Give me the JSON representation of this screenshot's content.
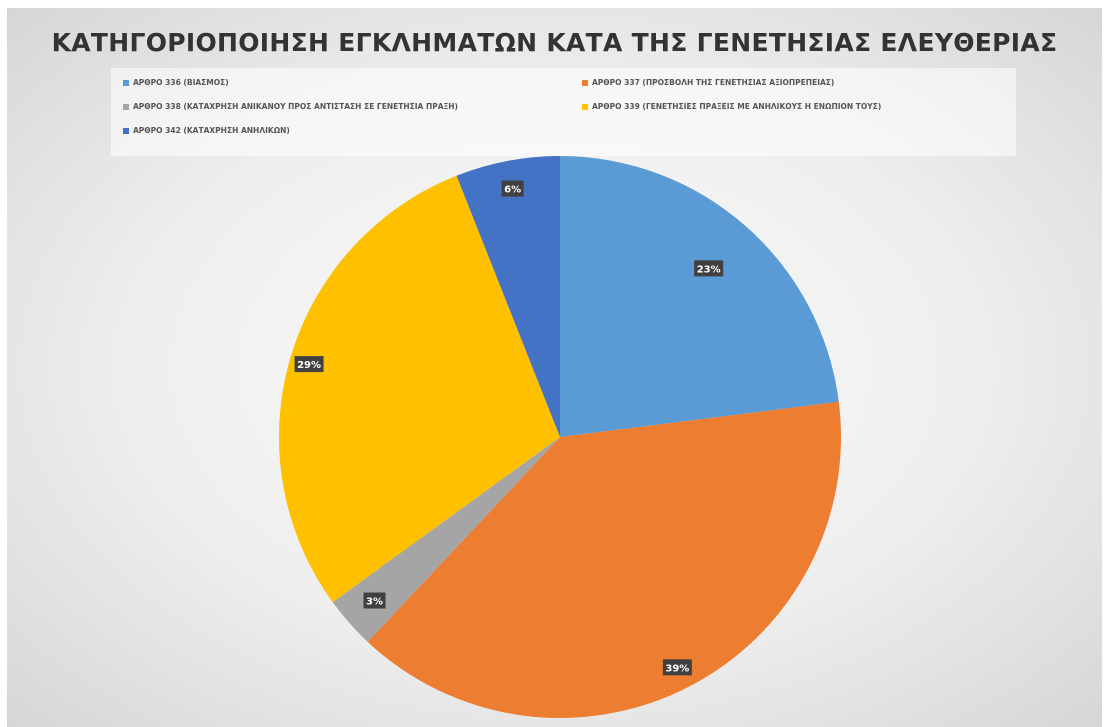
{
  "chart_data": {
    "type": "pie",
    "title": "ΚΑΤΗΓΟΡΙΟΠΟΙΗΣΗ ΕΓΚΛΗΜΑΤΩΝ ΚΑΤΑ ΤΗΣ ΓΕΝΕΤΗΣΙΑΣ ΕΛΕΥΘΕΡΙΑΣ",
    "legend_position": "top",
    "categories": [
      "ΑΡΘΡΟ 336 (ΒΙΑΣΜΟΣ)",
      "ΑΡΘΡΟ 337 (ΠΡΟΣΒΟΛΗ ΤΗΣ ΓΕΝΕΤΗΣΙΑΣ ΑΞΙΟΠΡΕΠΕΙΑΣ)",
      "ΑΡΘΡΟ 338 (ΚΑΤΑΧΡΗΣΗ ΑΝΙΚΑΝΟΥ ΠΡΟΣ ΑΝΤΙΣΤΑΣΗ ΣΕ ΓΕΝΕΤΗΣΙΑ ΠΡΑΞΗ)",
      "ΑΡΘΡΟ 339 (ΓΕΝΕΤΗΣΙΕΣ ΠΡΑΞΕΙΣ ΜΕ ΑΝΗΛΙΚΟΥΣ Η ΕΝΩΠΙΟΝ ΤΟΥΣ)",
      "ΑΡΘΡΟ 342 (ΚΑΤΑΧΡΗΣΗ ΑΝΗΛΙΚΩΝ)"
    ],
    "values": [
      23,
      39,
      3,
      29,
      6
    ],
    "data_labels": [
      "23%",
      "39%",
      "3%",
      "29%",
      "6%"
    ],
    "colors": [
      "#5b9bd5",
      "#ed7d31",
      "#a5a5a5",
      "#ffc000",
      "#4472c4"
    ]
  }
}
